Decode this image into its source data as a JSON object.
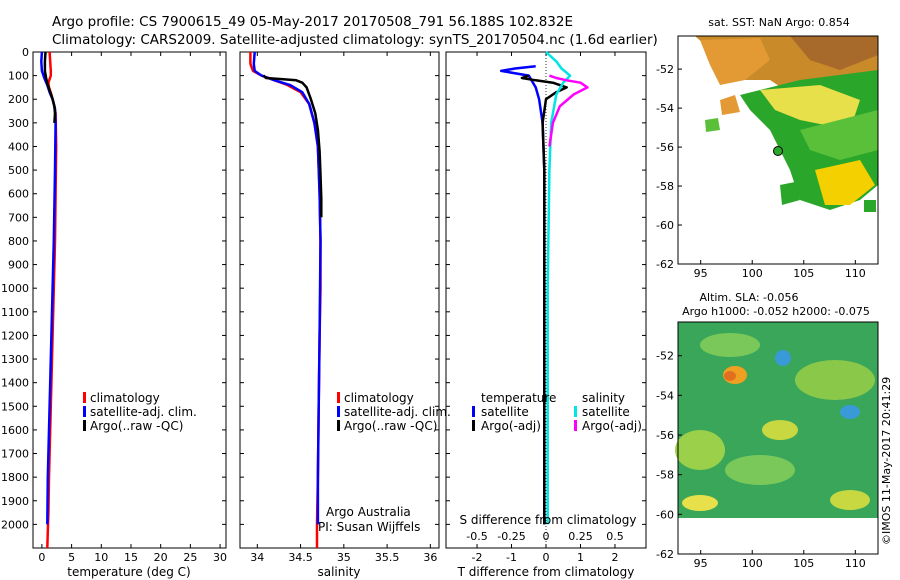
{
  "header": {
    "line1": "Argo profile: CS 7900615_49 05-May-2017 20170508_791 56.188S 102.832E",
    "line2": "Climatology: CARS2009. Satellite-adjusted climatology: synTS_20170504.nc (1.6d earlier)"
  },
  "depth_ticks": [
    "0",
    "100",
    "200",
    "300",
    "400",
    "500",
    "600",
    "700",
    "800",
    "900",
    "1000",
    "1100",
    "1200",
    "1300",
    "1400",
    "1500",
    "1600",
    "1700",
    "1800",
    "1900",
    "2000"
  ],
  "colors": {
    "climatology": "#ff0000",
    "satellite": "#0000ff",
    "argo": "#000000",
    "cyan": "#00e5e5",
    "magenta": "#ff00ff"
  },
  "chart_data": [
    {
      "type": "line",
      "id": "temperature",
      "xlabel": "temperature (deg C)",
      "xlim": [
        -1.5,
        31
      ],
      "ylim": [
        0,
        2100
      ],
      "xticks": [
        "0",
        "5",
        "10",
        "15",
        "20",
        "25",
        "30"
      ],
      "xtick_values": [
        0,
        5,
        10,
        15,
        20,
        25,
        30
      ],
      "legend": [
        "climatology",
        "satellite-adj. clim.",
        "Argo(..raw -QC)"
      ],
      "series": [
        {
          "name": "climatology",
          "color": "#ff0000",
          "x": [
            1.3,
            1.4,
            1.5,
            1.5,
            1.1,
            1.2,
            1.6,
            2.0,
            2.3,
            2.4,
            2.3,
            2.2,
            2.0,
            1.8,
            1.6,
            1.4,
            1.2,
            1.1,
            1.0,
            0.9
          ],
          "y": [
            0,
            40,
            80,
            100,
            130,
            150,
            180,
            220,
            260,
            400,
            600,
            800,
            1000,
            1200,
            1400,
            1600,
            1800,
            1950,
            2030,
            2100
          ]
        },
        {
          "name": "satellite-adj. clim.",
          "color": "#0000ff",
          "x": [
            0.0,
            -0.1,
            0.0,
            0.4,
            0.9,
            1.3,
            1.8,
            2.2,
            2.3,
            2.2,
            2.0,
            1.8,
            1.6,
            1.4,
            1.2,
            1.0,
            0.9
          ],
          "y": [
            0,
            40,
            80,
            110,
            140,
            170,
            200,
            240,
            300,
            500,
            800,
            1000,
            1200,
            1400,
            1600,
            1800,
            2000
          ]
        },
        {
          "name": "Argo(..raw -QC)",
          "color": "#000000",
          "x": [
            0.6,
            0.5,
            0.5,
            0.7,
            1.0,
            1.4,
            1.8,
            2.1,
            2.2,
            2.1
          ],
          "y": [
            0,
            40,
            80,
            110,
            140,
            170,
            200,
            230,
            260,
            300
          ]
        }
      ]
    },
    {
      "type": "line",
      "id": "salinity",
      "xlabel": "salinity",
      "xlim": [
        33.8,
        36.1
      ],
      "ylim": [
        0,
        2100
      ],
      "xticks": [
        "34",
        "34.5",
        "35",
        "35.5",
        "36"
      ],
      "xtick_values": [
        34,
        34.5,
        35,
        35.5,
        36
      ],
      "legend": [
        "climatology",
        "satellite-adj. clim.",
        "Argo(..raw -QC)"
      ],
      "annotation": [
        "Argo Australia",
        "PI: Susan Wijffels"
      ],
      "series": [
        {
          "name": "climatology",
          "color": "#ff0000",
          "x": [
            33.92,
            33.92,
            33.95,
            34.05,
            34.2,
            34.35,
            34.5,
            34.6,
            34.66,
            34.7,
            34.72,
            34.73,
            34.73,
            34.72,
            34.71,
            34.7,
            34.69,
            34.69
          ],
          "y": [
            0,
            50,
            80,
            100,
            120,
            140,
            170,
            220,
            300,
            400,
            600,
            800,
            1000,
            1200,
            1500,
            1800,
            2000,
            2100
          ]
        },
        {
          "name": "satellite-adj. clim.",
          "color": "#0000ff",
          "x": [
            33.97,
            33.96,
            33.97,
            34.05,
            34.2,
            34.38,
            34.52,
            34.6,
            34.66,
            34.7,
            34.72,
            34.73,
            34.72,
            34.71,
            34.7,
            34.7
          ],
          "y": [
            0,
            50,
            80,
            100,
            120,
            140,
            170,
            220,
            300,
            400,
            600,
            800,
            1200,
            1500,
            1800,
            2000
          ]
        },
        {
          "name": "Argo(..raw -QC)",
          "color": "#000000",
          "x": [
            34.07,
            34.1,
            34.3,
            34.45,
            34.52,
            34.57,
            34.62,
            34.67,
            34.7,
            34.72,
            34.73,
            34.74,
            34.74
          ],
          "y": [
            100,
            110,
            115,
            120,
            130,
            150,
            200,
            260,
            330,
            420,
            520,
            620,
            700
          ]
        }
      ]
    },
    {
      "type": "line",
      "id": "difference",
      "xlabel": "T difference from climatology",
      "xlabel_top": "S difference from climatology",
      "xlim": [
        -2.9,
        2.9
      ],
      "ylim": [
        0,
        2100
      ],
      "xticks": [
        "-2",
        "-1",
        "0",
        "1",
        "2"
      ],
      "xtick_values": [
        -2,
        -1,
        0,
        1,
        2
      ],
      "xticks_top": [
        "-0.5",
        "-0.25",
        "0",
        "0.25",
        "0.5"
      ],
      "xtick_top_values": [
        -0.5,
        -0.25,
        0,
        0.25,
        0.5
      ],
      "legend_left_title": "temperature",
      "legend_right_title": "salinity",
      "legend_left": [
        "satellite",
        "Argo(-adj)"
      ],
      "legend_right": [
        "satellite",
        "Argo(-adj)"
      ],
      "series": [
        {
          "name": "temperature satellite",
          "color": "#0000ff",
          "x": [
            -0.3,
            -0.9,
            -1.3,
            -0.5,
            -0.3,
            -0.2,
            -0.1,
            -0.05,
            -0.05,
            -0.05,
            -0.05
          ],
          "y": [
            60,
            70,
            80,
            100,
            150,
            200,
            300,
            500,
            1000,
            1500,
            2000
          ]
        },
        {
          "name": "temperature Argo(-adj)",
          "color": "#000000",
          "x": [
            -0.5,
            -0.7,
            -0.3,
            0.2,
            0.6,
            0.3,
            0.0,
            -0.1,
            -0.05,
            -0.05,
            -0.05
          ],
          "y": [
            100,
            110,
            120,
            130,
            150,
            170,
            200,
            300,
            500,
            1000,
            2000
          ]
        },
        {
          "name": "salinity satellite",
          "color": "#00e5e5",
          "x": [
            0.0,
            0.3,
            0.45,
            0.7,
            0.5,
            0.3,
            0.15,
            0.1,
            0.05,
            0.05
          ],
          "y": [
            0,
            40,
            70,
            100,
            130,
            180,
            300,
            500,
            1000,
            2000
          ]
        },
        {
          "name": "salinity Argo(-adj)",
          "color": "#ff00ff",
          "x": [
            0.1,
            0.3,
            0.6,
            1.0,
            1.2,
            0.8,
            0.4,
            0.2,
            0.1
          ],
          "y": [
            100,
            110,
            120,
            130,
            150,
            180,
            230,
            300,
            400
          ]
        }
      ]
    }
  ],
  "maps": {
    "sst_title": "sat. SST: NaN Argo: 0.854",
    "sla_title1": "Altim. SLA: -0.056",
    "sla_title2": "Argo h1000: -0.052 h2000: -0.075",
    "xticks": [
      "95",
      "100",
      "105",
      "110"
    ],
    "yticks": [
      "-52",
      "-54",
      "-56",
      "-58",
      "-60",
      "-62"
    ],
    "credit": "©IMOS 11-May-2017 20:41:29"
  }
}
